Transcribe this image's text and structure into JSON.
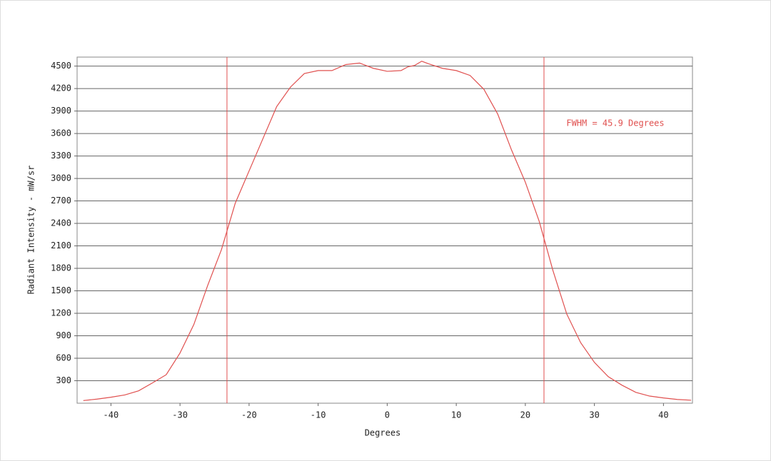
{
  "chart_data": {
    "type": "line",
    "x_label": "Degrees",
    "y_label": "Radiant Intensity - mW/sr",
    "annotation": "FWHM = 45.9 Degrees",
    "fwhm_lines": [
      -23.2,
      22.7
    ],
    "xlim": [
      -44.9,
      44.2
    ],
    "ylim": [
      0,
      4620
    ],
    "xticks": [
      -40,
      -30,
      -20,
      -10,
      0,
      10,
      20,
      30,
      40
    ],
    "yticks": [
      300,
      600,
      900,
      1200,
      1500,
      1800,
      2100,
      2400,
      2700,
      3000,
      3300,
      3600,
      3900,
      4200,
      4500
    ],
    "grid": true,
    "series": [
      {
        "color": "#e0504f",
        "x": [
          -44,
          -42,
          -40,
          -38,
          -36,
          -34,
          -32,
          -30,
          -28,
          -26,
          -24,
          -22,
          -20,
          -18,
          -16,
          -14,
          -12,
          -10,
          -8,
          -6,
          -4,
          -2,
          0,
          2,
          3,
          4,
          5,
          6,
          8,
          10,
          12,
          14,
          16,
          18,
          20,
          22,
          24,
          26,
          28,
          30,
          32,
          34,
          36,
          38,
          40,
          42,
          44
        ],
        "values": [
          35,
          55,
          80,
          110,
          165,
          270,
          380,
          670,
          1050,
          1570,
          2050,
          2670,
          3100,
          3530,
          3960,
          4220,
          4400,
          4440,
          4440,
          4520,
          4540,
          4470,
          4430,
          4440,
          4490,
          4510,
          4565,
          4530,
          4470,
          4440,
          4375,
          4190,
          3860,
          3380,
          2950,
          2430,
          1770,
          1190,
          810,
          545,
          355,
          240,
          145,
          95,
          70,
          50,
          40
        ]
      }
    ]
  }
}
